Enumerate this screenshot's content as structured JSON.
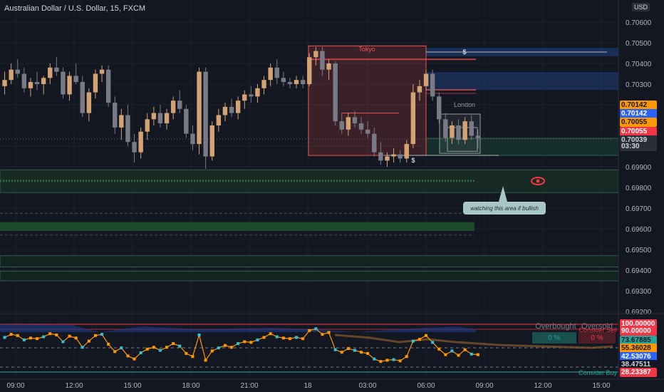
{
  "title": "Australian Dollar / U.S. Dollar, 15, FXCM",
  "currency_chip": "USD",
  "colors": {
    "bg": "#131722",
    "up": "#d4a373",
    "down": "#787b86",
    "grid": "#1e222d",
    "session_red": "#ef5350",
    "zone_blue": "#1e3a6e",
    "zone_green": "#1f4d35",
    "axis_text": "#b2b5be"
  },
  "chart_data": {
    "type": "candlestick",
    "y_axis_ticks": [
      "0.70600",
      "0.70500",
      "0.70400",
      "0.70300",
      "0.70200",
      "0.70100",
      "0.70000",
      "0.69900",
      "0.69800",
      "0.69700",
      "0.69600",
      "0.69500",
      "0.69400",
      "0.69300",
      "0.69200"
    ],
    "ylim": [
      0.692,
      0.7065
    ],
    "x_axis_ticks": [
      "09:00",
      "12:00",
      "15:00",
      "18:00",
      "21:00",
      "18",
      "03:00",
      "06:00",
      "09:00",
      "12:00",
      "15:00"
    ],
    "candles": [
      [
        0.7029,
        0.7036,
        0.7025,
        0.7032
      ],
      [
        0.7032,
        0.704,
        0.703,
        0.7037
      ],
      [
        0.7037,
        0.7042,
        0.7033,
        0.7035
      ],
      [
        0.7035,
        0.7038,
        0.7026,
        0.7028
      ],
      [
        0.7028,
        0.7033,
        0.7024,
        0.7031
      ],
      [
        0.7031,
        0.7036,
        0.7027,
        0.703
      ],
      [
        0.703,
        0.7034,
        0.7025,
        0.7033
      ],
      [
        0.7033,
        0.704,
        0.703,
        0.7038
      ],
      [
        0.7038,
        0.7043,
        0.7034,
        0.7036
      ],
      [
        0.7036,
        0.7038,
        0.7023,
        0.7025
      ],
      [
        0.7025,
        0.7036,
        0.7022,
        0.7034
      ],
      [
        0.7034,
        0.704,
        0.703,
        0.7031
      ],
      [
        0.7031,
        0.7034,
        0.7014,
        0.7016
      ],
      [
        0.7016,
        0.7028,
        0.7012,
        0.7026
      ],
      [
        0.7026,
        0.7037,
        0.7023,
        0.7035
      ],
      [
        0.7035,
        0.7039,
        0.7031,
        0.7037
      ],
      [
        0.7037,
        0.7039,
        0.7019,
        0.7021
      ],
      [
        0.7021,
        0.7024,
        0.7006,
        0.7009
      ],
      [
        0.7009,
        0.7018,
        0.7003,
        0.7015
      ],
      [
        0.7015,
        0.702,
        0.7,
        0.7002
      ],
      [
        0.7002,
        0.7006,
        0.6992,
        0.6997
      ],
      [
        0.6997,
        0.7009,
        0.6994,
        0.7007
      ],
      [
        0.7007,
        0.7016,
        0.7003,
        0.7013
      ],
      [
        0.7013,
        0.7019,
        0.701,
        0.7016
      ],
      [
        0.7016,
        0.702,
        0.7009,
        0.7011
      ],
      [
        0.7011,
        0.7018,
        0.7008,
        0.7016
      ],
      [
        0.7016,
        0.7024,
        0.7013,
        0.7022
      ],
      [
        0.7022,
        0.7027,
        0.7016,
        0.7018
      ],
      [
        0.7018,
        0.702,
        0.7004,
        0.7006
      ],
      [
        0.7006,
        0.701,
        0.6998,
        0.7001
      ],
      [
        0.7001,
        0.7038,
        0.6996,
        0.7036
      ],
      [
        0.7036,
        0.7038,
        0.6989,
        0.6995
      ],
      [
        0.6995,
        0.7012,
        0.6993,
        0.701
      ],
      [
        0.701,
        0.7018,
        0.7007,
        0.7015
      ],
      [
        0.7015,
        0.7021,
        0.7012,
        0.7019
      ],
      [
        0.7019,
        0.7023,
        0.7014,
        0.7016
      ],
      [
        0.7016,
        0.7024,
        0.7013,
        0.7022
      ],
      [
        0.7022,
        0.7027,
        0.7018,
        0.7025
      ],
      [
        0.7025,
        0.7029,
        0.7021,
        0.7024
      ],
      [
        0.7024,
        0.703,
        0.7021,
        0.7028
      ],
      [
        0.7028,
        0.7034,
        0.7025,
        0.7032
      ],
      [
        0.7032,
        0.704,
        0.7029,
        0.7038
      ],
      [
        0.7038,
        0.7042,
        0.703,
        0.7033
      ],
      [
        0.7033,
        0.7036,
        0.7029,
        0.7031
      ],
      [
        0.7031,
        0.7033,
        0.7028,
        0.703
      ],
      [
        0.703,
        0.7034,
        0.7028,
        0.7032
      ],
      [
        0.7032,
        0.7034,
        0.7028,
        0.703
      ],
      [
        0.703,
        0.7045,
        0.7029,
        0.7043
      ],
      [
        0.7043,
        0.7048,
        0.7039,
        0.7046
      ],
      [
        0.7046,
        0.7048,
        0.7034,
        0.7037
      ],
      [
        0.7037,
        0.7042,
        0.7032,
        0.704
      ],
      [
        0.704,
        0.7041,
        0.701,
        0.7012
      ],
      [
        0.7012,
        0.7016,
        0.7006,
        0.7008
      ],
      [
        0.7008,
        0.7016,
        0.7005,
        0.7014
      ],
      [
        0.7014,
        0.7017,
        0.7009,
        0.7011
      ],
      [
        0.7011,
        0.7014,
        0.7006,
        0.7008
      ],
      [
        0.7008,
        0.7012,
        0.7004,
        0.7006
      ],
      [
        0.7006,
        0.7009,
        0.6995,
        0.6997
      ],
      [
        0.6997,
        0.7002,
        0.6991,
        0.6993
      ],
      [
        0.6993,
        0.6997,
        0.699,
        0.6995
      ],
      [
        0.6995,
        0.6999,
        0.6992,
        0.6996
      ],
      [
        0.6996,
        0.6998,
        0.6992,
        0.6994
      ],
      [
        0.6994,
        0.7003,
        0.6992,
        0.7001
      ],
      [
        0.7001,
        0.703,
        0.6999,
        0.7026
      ],
      [
        0.7026,
        0.7032,
        0.7022,
        0.7029
      ],
      [
        0.7029,
        0.7037,
        0.7027,
        0.7035
      ],
      [
        0.7035,
        0.7037,
        0.7022,
        0.7024
      ],
      [
        0.7024,
        0.7026,
        0.7011,
        0.7013
      ],
      [
        0.7013,
        0.7016,
        0.7002,
        0.7004
      ],
      [
        0.7004,
        0.7012,
        0.7001,
        0.701
      ],
      [
        0.701,
        0.7013,
        0.7001,
        0.7003
      ],
      [
        0.7003,
        0.7014,
        0.7001,
        0.7012
      ],
      [
        0.7012,
        0.7015,
        0.7003,
        0.7005
      ],
      [
        0.7005,
        0.7008,
        0.6999,
        0.7004
      ]
    ],
    "annotations": {
      "session_tokyo": "Tokyo",
      "session_london": "London",
      "dollar_top": "$",
      "dollar_bottom": "$",
      "callout": "watching this area if bullish"
    },
    "price_labels": [
      {
        "text": "0.70142",
        "color": "#ff9800",
        "fg": "#131722",
        "price": 0.70142
      },
      {
        "text": "0.70142",
        "color": "#2962ff",
        "fg": "#ffffff",
        "price": 0.70142
      },
      {
        "text": "0.70055",
        "color": "#ff9800",
        "fg": "#131722",
        "price": 0.70055
      },
      {
        "text": "0.70055",
        "color": "#f23645",
        "fg": "#ffffff",
        "price": 0.70055
      },
      {
        "text": "0.70039",
        "color": "#2a2e39",
        "fg": "#d1d4dc",
        "price": 0.70039
      },
      {
        "text": "03:30",
        "color": "#2a2e39",
        "fg": "#d1d4dc",
        "price": 0.70039
      }
    ],
    "indicator": {
      "overbought_label": "Overbought",
      "oversold_label": "Oversold",
      "overbought_pct": "0 %",
      "oversold_pct": "0 %",
      "consider_sell": "Consider Sell",
      "consider_buy": "Consider Buy",
      "levels": [
        {
          "text": "100.00000",
          "color": "#f23645",
          "fg": "#ffffff"
        },
        {
          "text": "90.00000",
          "color": "#f23645",
          "fg": "#ffffff"
        },
        {
          "text": "73.67885",
          "color": "#26a69a",
          "fg": "#131722"
        },
        {
          "text": "55.36028",
          "color": "#ff9800",
          "fg": "#131722"
        },
        {
          "text": "42.53076",
          "color": "#2962ff",
          "fg": "#ffffff"
        },
        {
          "text": "38.47511",
          "color": "#131722",
          "fg": "#d1d4dc"
        },
        {
          "text": "28.23387",
          "color": "#f23645",
          "fg": "#ffffff"
        }
      ]
    }
  }
}
